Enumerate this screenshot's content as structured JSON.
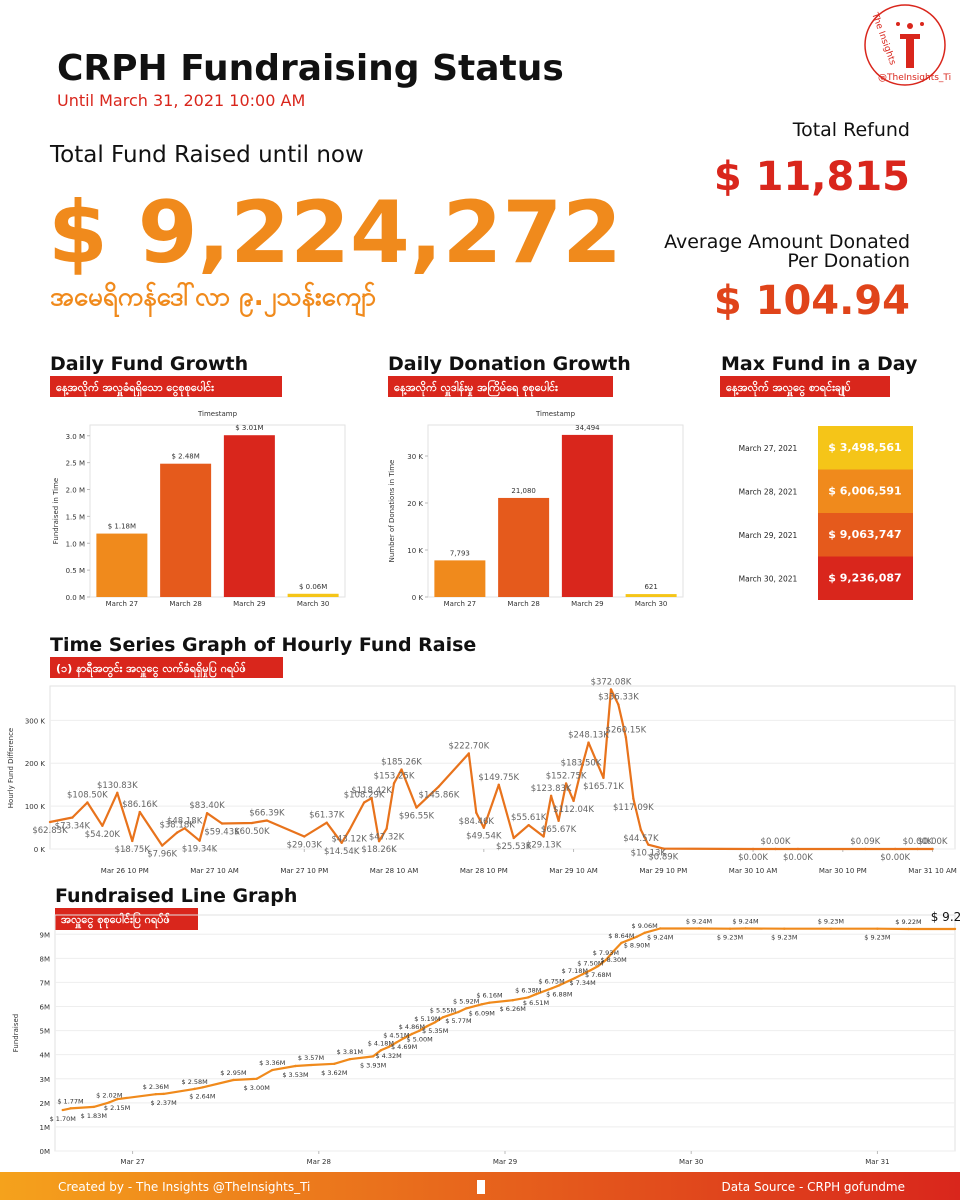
{
  "header": {
    "title": "CRPH Fundraising Status",
    "subtitle": "Until March 31, 2021 10:00 AM",
    "total_label": "Total Fund Raised until now",
    "total_value": "$ 9,224,272",
    "total_mm": "အမေရိကန်ဒေါ်လာ ၉.၂သန်းကျော်",
    "refund_label": "Total Refund",
    "refund_value": "$ 11,815",
    "average_label": [
      "Average Amount Donated",
      "Per Donation"
    ],
    "average_value": "$ 104.94"
  },
  "logo": {
    "name": "The Insights",
    "handle": "@TheInsights_Ti"
  },
  "max_fund": {
    "title": "Max Fund in a Day",
    "subtitle": "နေ့အလိုက် အလှူငွေ စာရင်းချုပ်",
    "rows": [
      {
        "date": "March 27, 2021",
        "value": "$ 3,498,561",
        "color": "#f5c518"
      },
      {
        "date": "March 28, 2021",
        "value": "$ 6,006,591",
        "color": "#f08a1c"
      },
      {
        "date": "March 29, 2021",
        "value": "$ 9,063,747",
        "color": "#e55a1c"
      },
      {
        "date": "March 30, 2021",
        "value": "$ 9,236,087",
        "color": "#d9261c"
      }
    ]
  },
  "chart_data": [
    {
      "type": "bar",
      "title": "Daily Fund Growth",
      "subtitle": "နေ့အလိုက် အလှူခံရရှိသော ငွေစုစုပေါင်း",
      "x_label": "Timestamp",
      "y_label": "Fundraised in Time",
      "categories": [
        "March 27",
        "March 28",
        "March 29",
        "March 30"
      ],
      "values": [
        1.18,
        2.48,
        3.01,
        0.06
      ],
      "value_labels": [
        "$ 1.18M",
        "$ 2.48M",
        "$ 3.01M",
        "$ 0.06M"
      ],
      "colors": [
        "#f08a1c",
        "#e55a1c",
        "#d9261c",
        "#f5c518"
      ],
      "ylim": [
        0,
        3.2
      ],
      "yticks": [
        {
          "value": 0,
          "label": "0.0 M"
        },
        {
          "value": 0.5,
          "label": "0.5 M"
        },
        {
          "value": 1,
          "label": "1.0 M"
        },
        {
          "value": 1.5,
          "label": "1.5 M"
        },
        {
          "value": 2,
          "label": "2.0 M"
        },
        {
          "value": 2.5,
          "label": "2.5 M"
        },
        {
          "value": 3,
          "label": "3.0 M"
        }
      ],
      "grid": false
    },
    {
      "type": "bar",
      "title": "Daily Donation Growth",
      "subtitle": "နေ့အလိုက် လှူဒါန်းမှု အကြိမ်ရေ စုစုပေါင်း",
      "x_label": "Timestamp",
      "y_label": "Number of Donations in Time",
      "categories": [
        "March 27",
        "March 28",
        "March 29",
        "March 30"
      ],
      "values": [
        7793,
        21080,
        34494,
        621
      ],
      "value_labels": [
        "7,793",
        "21,080",
        "34,494",
        "621"
      ],
      "colors": [
        "#f08a1c",
        "#e55a1c",
        "#d9261c",
        "#f5c518"
      ],
      "ylim": [
        0,
        36600
      ],
      "yticks": [
        {
          "value": 0,
          "label": "0 K"
        },
        {
          "value": 10000,
          "label": "10 K"
        },
        {
          "value": 20000,
          "label": "20 K"
        },
        {
          "value": 30000,
          "label": "30 K"
        }
      ],
      "grid": false
    },
    {
      "type": "line",
      "title": "Time Series Graph of Hourly Fund Raise",
      "subtitle": "(၁) နာရီအတွင်း အလှူငွေ လက်ခံရရှိမှုပြ ဂရပ်ဖ်",
      "y_label": "Hourly Fund Difference",
      "color": "#e8731c",
      "x": [
        12,
        15,
        17,
        19,
        21,
        23,
        24,
        27,
        29,
        30,
        32,
        33,
        35,
        39,
        41,
        46,
        49,
        51,
        52,
        54,
        55,
        56,
        57,
        58,
        59,
        61,
        64,
        68,
        69,
        70,
        72,
        74,
        76,
        78,
        79,
        80,
        81,
        82,
        83,
        84,
        86,
        87,
        88,
        89,
        90,
        91,
        92,
        94,
        106,
        109,
        112,
        121,
        125,
        128,
        130
      ],
      "values": [
        62.83,
        73.34,
        108.5,
        54.2,
        130.83,
        18.75,
        86.16,
        7.96,
        38.18,
        48.18,
        19.34,
        83.4,
        59.43,
        60.5,
        66.39,
        29.03,
        61.37,
        14.54,
        43.12,
        108.29,
        118.42,
        18.26,
        47.32,
        153.25,
        185.26,
        96.55,
        145.86,
        222.7,
        84.46,
        49.54,
        149.75,
        25.53,
        55.61,
        29.13,
        123.83,
        65.67,
        152.75,
        112.04,
        183.5,
        248.13,
        165.71,
        372.08,
        336.33,
        260.15,
        117.09,
        44.57,
        10.13,
        0.89,
        0,
        0,
        0,
        0.09,
        0,
        0,
        0
      ],
      "value_labels": [
        "$62.83K",
        "$73.34K",
        "$108.50K",
        "$54.20K",
        "$130.83K",
        "$18.75K",
        "$86.16K",
        "$7.96K",
        "$38.18K",
        "$48.18K",
        "$19.34K",
        "$83.40K",
        "$59.43K",
        "$60.50K",
        "$66.39K",
        "$29.03K",
        "$61.37K",
        "$14.54K",
        "$43.12K",
        "$108.29K",
        "$118.42K",
        "$18.26K",
        "$47.32K",
        "$153.25K",
        "$185.26K",
        "$96.55K",
        "$145.86K",
        "$222.70K",
        "$84.46K",
        "$49.54K",
        "$149.75K",
        "$25.53K",
        "$55.61K",
        "$29.13K",
        "$123.83K",
        "$65.67K",
        "$152.75K",
        "$112.04K",
        "$183.50K",
        "$248.13K",
        "$165.71K",
        "$372.08K",
        "$336.33K",
        "$260.15K",
        "$117.09K",
        "$44.57K",
        "$10.13K",
        "$0.89K",
        "$0.00K",
        "$0.00K",
        "$0.00K",
        "$0.09K",
        "$0.00K",
        "$0.00K",
        "$0.00K"
      ],
      "xlim": [
        12,
        133
      ],
      "xticks": [
        {
          "value": 22,
          "label": "Mar 26 10 PM"
        },
        {
          "value": 34,
          "label": "Mar 27 10 AM"
        },
        {
          "value": 46,
          "label": "Mar 27 10 PM"
        },
        {
          "value": 58,
          "label": "Mar 28 10 AM"
        },
        {
          "value": 70,
          "label": "Mar 28 10 PM"
        },
        {
          "value": 82,
          "label": "Mar 29 10 AM"
        },
        {
          "value": 94,
          "label": "Mar 29 10 PM"
        },
        {
          "value": 106,
          "label": "Mar 30 10 AM"
        },
        {
          "value": 118,
          "label": "Mar 30 10 PM"
        },
        {
          "value": 130,
          "label": "Mar 31 10 AM"
        }
      ],
      "ylim": [
        0,
        380
      ],
      "yticks": [
        {
          "value": 0,
          "label": "0 K"
        },
        {
          "value": 100,
          "label": "100 K"
        },
        {
          "value": 200,
          "label": "200 K"
        },
        {
          "value": 300,
          "label": "300 K"
        }
      ],
      "grid": true
    },
    {
      "type": "line",
      "title": "Fundraised Line Graph",
      "subtitle": "အလှူငွေ စုစုပေါင်းပြ ဂရပ်ဖ်",
      "y_label": "Fundraised",
      "color": "#f08a1c",
      "x": [
        15,
        16,
        19,
        21,
        22,
        27,
        28,
        32,
        33,
        37,
        40,
        42,
        45,
        47,
        50,
        52,
        55,
        56,
        57,
        58,
        59,
        60,
        61,
        62,
        63,
        64,
        66,
        67,
        69,
        70,
        73,
        75,
        76,
        78,
        79,
        81,
        82,
        83,
        84,
        85,
        86,
        87,
        89,
        90,
        92,
        97,
        101,
        103,
        108,
        114,
        120,
        124,
        130
      ],
      "values": [
        1.7,
        1.77,
        1.83,
        2.02,
        2.15,
        2.36,
        2.37,
        2.58,
        2.64,
        2.95,
        3.0,
        3.36,
        3.53,
        3.57,
        3.62,
        3.81,
        3.93,
        4.18,
        4.32,
        4.51,
        4.69,
        4.86,
        5.0,
        5.19,
        5.35,
        5.55,
        5.77,
        5.92,
        6.09,
        6.16,
        6.26,
        6.38,
        6.51,
        6.75,
        6.88,
        7.18,
        7.34,
        7.5,
        7.68,
        7.93,
        8.3,
        8.64,
        8.9,
        9.06,
        9.24,
        9.24,
        9.23,
        9.24,
        9.23,
        9.23,
        9.23,
        9.22,
        9.22
      ],
      "value_labels": [
        "$ 1.70M",
        "$ 1.77M",
        "$ 1.83M",
        "$ 2.02M",
        "$ 2.15M",
        "$ 2.36M",
        "$ 2.37M",
        "$ 2.58M",
        "$ 2.64M",
        "$ 2.95M",
        "$ 3.00M",
        "$ 3.36M",
        "$ 3.53M",
        "$ 3.57M",
        "$ 3.62M",
        "$ 3.81M",
        "$ 3.93M",
        "$ 4.18M",
        "$ 4.32M",
        "$ 4.51M",
        "$ 4.69M",
        "$ 4.86M",
        "$ 5.00M",
        "$ 5.19M",
        "$ 5.35M",
        "$ 5.55M",
        "$ 5.77M",
        "$ 5.92M",
        "$ 6.09M",
        "$ 6.16M",
        "$ 6.26M",
        "$ 6.38M",
        "$ 6.51M",
        "$ 6.75M",
        "$ 6.88M",
        "$ 7.18M",
        "$ 7.34M",
        "$ 7.50M",
        "$ 7.68M",
        "$ 7.93M",
        "$ 8.30M",
        "$ 8.64M",
        "$ 8.90M",
        "$ 9.06M",
        "$ 9.24M",
        "$ 9.24M",
        "$ 9.23M",
        "$ 9.24M",
        "$ 9.23M",
        "$ 9.23M",
        "$ 9.23M",
        "$ 9.22M",
        "$ 9.22M"
      ],
      "xlim": [
        14,
        130
      ],
      "xticks": [
        {
          "value": 24,
          "label": "Mar 27"
        },
        {
          "value": 48,
          "label": "Mar 28"
        },
        {
          "value": 72,
          "label": "Mar 29"
        },
        {
          "value": 96,
          "label": "Mar 30"
        },
        {
          "value": 120,
          "label": "Mar 31"
        }
      ],
      "ylim": [
        0,
        9.8
      ],
      "yticks": [
        {
          "value": 0,
          "label": "0M"
        },
        {
          "value": 1,
          "label": "1M"
        },
        {
          "value": 2,
          "label": "2M"
        },
        {
          "value": 3,
          "label": "3M"
        },
        {
          "value": 4,
          "label": "4M"
        },
        {
          "value": 5,
          "label": "5M"
        },
        {
          "value": 6,
          "label": "6M"
        },
        {
          "value": 7,
          "label": "7M"
        },
        {
          "value": 8,
          "label": "8M"
        },
        {
          "value": 9,
          "label": "9M"
        }
      ],
      "grid": true
    }
  ],
  "footer": {
    "credit": "Created by - The Insights @TheInsights_Ti",
    "source": "Data Source - CRPH gofundme"
  }
}
